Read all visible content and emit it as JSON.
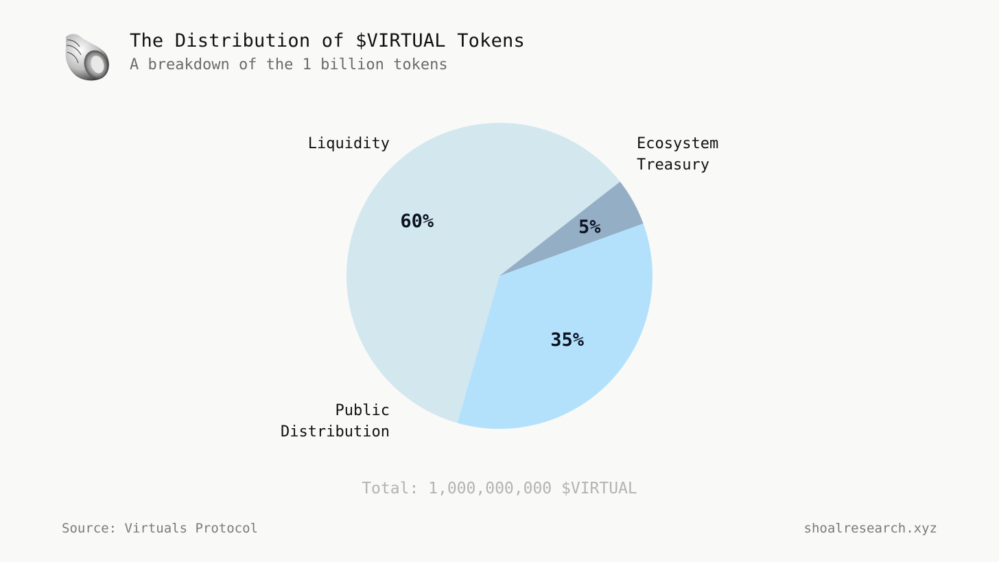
{
  "header": {
    "title": "The Distribution of $VIRTUAL Tokens",
    "subtitle": "A breakdown of the 1 billion tokens",
    "logo_icon": "seashell-icon"
  },
  "footer": {
    "total": "Total: 1,000,000,000 $VIRTUAL",
    "source": "Source: Virtuals Protocol",
    "site": "shoalresearch.xyz"
  },
  "chart_data": {
    "type": "pie",
    "title": "The Distribution of $VIRTUAL Tokens",
    "subtitle": "A breakdown of the 1 billion tokens",
    "categories": [
      "Ecosystem Treasury",
      "Public Distribution",
      "Liquidity"
    ],
    "values": [
      35,
      60,
      5
    ],
    "value_labels": [
      "35%",
      "60%",
      "5%"
    ],
    "colors": [
      "#b3e1fc",
      "#d3e7ef",
      "#94afc5"
    ],
    "start_angle_deg": -20,
    "direction": "clockwise",
    "legend": "none"
  }
}
